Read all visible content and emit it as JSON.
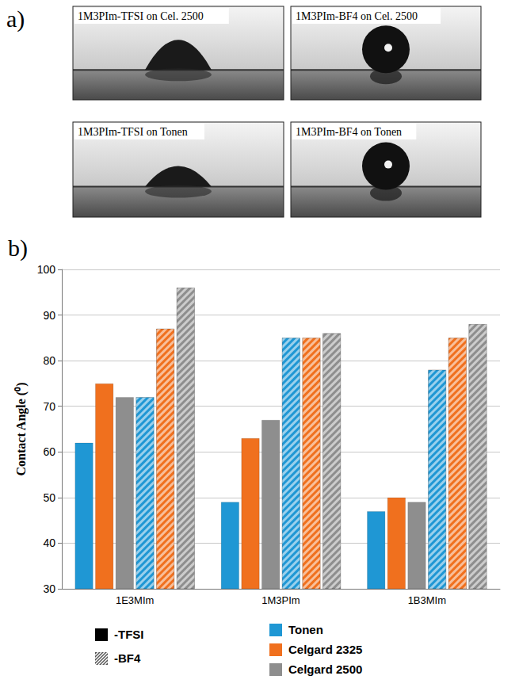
{
  "panel_a": {
    "letter": "a)",
    "photos": [
      "1M3PIm-TFSI on Cel. 2500",
      "1M3PIm-BF4 on Cel. 2500",
      "1M3PIm-TFSI on Tonen",
      "1M3PIm-BF4 on Tonen"
    ]
  },
  "panel_b": {
    "letter": "b)"
  },
  "chart_data": {
    "type": "bar",
    "ylabel": "Contact Angle (⁰)",
    "categories": [
      "1E3MIm",
      "1M3PIm",
      "1B3MIm"
    ],
    "ylim": [
      30,
      100
    ],
    "yticks": [
      30,
      40,
      50,
      60,
      70,
      80,
      90,
      100
    ],
    "grid": true,
    "legend": "bottom",
    "groups": [
      {
        "name": "-TFSI",
        "marker": "solid",
        "color": "#000000",
        "series": [
          {
            "name": "Tonen",
            "color": "#1f97d4",
            "values": [
              62,
              49,
              47
            ]
          },
          {
            "name": "Celgard 2325",
            "color": "#f0701e",
            "values": [
              75,
              63,
              50
            ]
          },
          {
            "name": "Celgard 2500",
            "color": "#8e8e8e",
            "values": [
              72,
              67,
              49
            ]
          }
        ]
      },
      {
        "name": "-BF4",
        "marker": "hatched",
        "color": "#555555",
        "series": [
          {
            "name": "Tonen",
            "color": "#1f97d4",
            "values": [
              72,
              85,
              78
            ]
          },
          {
            "name": "Celgard 2325",
            "color": "#f0701e",
            "values": [
              87,
              85,
              85
            ]
          },
          {
            "name": "Celgard 2500",
            "color": "#8e8e8e",
            "values": [
              96,
              86,
              88
            ]
          }
        ]
      }
    ]
  }
}
